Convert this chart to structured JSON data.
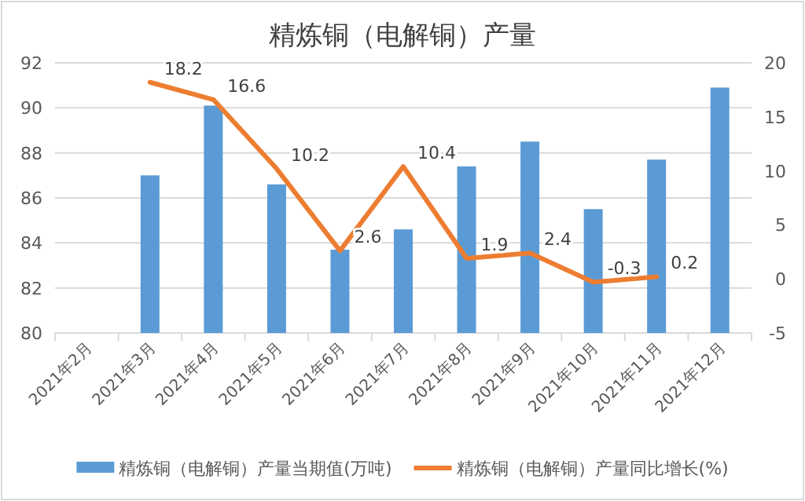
{
  "chart_data": {
    "type": "bar",
    "title": "精炼铜（电解铜）产量",
    "categories": [
      "2021年2月",
      "2021年3月",
      "2021年4月",
      "2021年5月",
      "2021年6月",
      "2021年7月",
      "2021年8月",
      "2021年9月",
      "2021年10月",
      "2021年11月",
      "2021年12月"
    ],
    "series": [
      {
        "name": "精炼铜（电解铜）产量当期值(万吨)",
        "color": "#5b9bd5",
        "values": [
          null,
          87.0,
          90.1,
          86.6,
          83.7,
          84.6,
          87.4,
          88.5,
          85.5,
          87.7,
          90.9
        ]
      },
      {
        "name": "精炼铜（电解铜）产量同比增长(%)",
        "type": "line",
        "axis": "y2",
        "color": "#ed7d31",
        "data_labels": true,
        "values": [
          null,
          18.2,
          16.6,
          10.2,
          2.6,
          10.4,
          1.9,
          2.4,
          -0.3,
          0.2,
          null
        ]
      }
    ],
    "ylim": [
      80,
      92
    ],
    "yticks": [
      80,
      82,
      84,
      86,
      88,
      90,
      92
    ],
    "y2lim": [
      -5,
      20
    ],
    "y2ticks": [
      -5,
      0,
      5,
      10,
      15,
      20
    ],
    "grid": "y",
    "legend": "bottom"
  }
}
